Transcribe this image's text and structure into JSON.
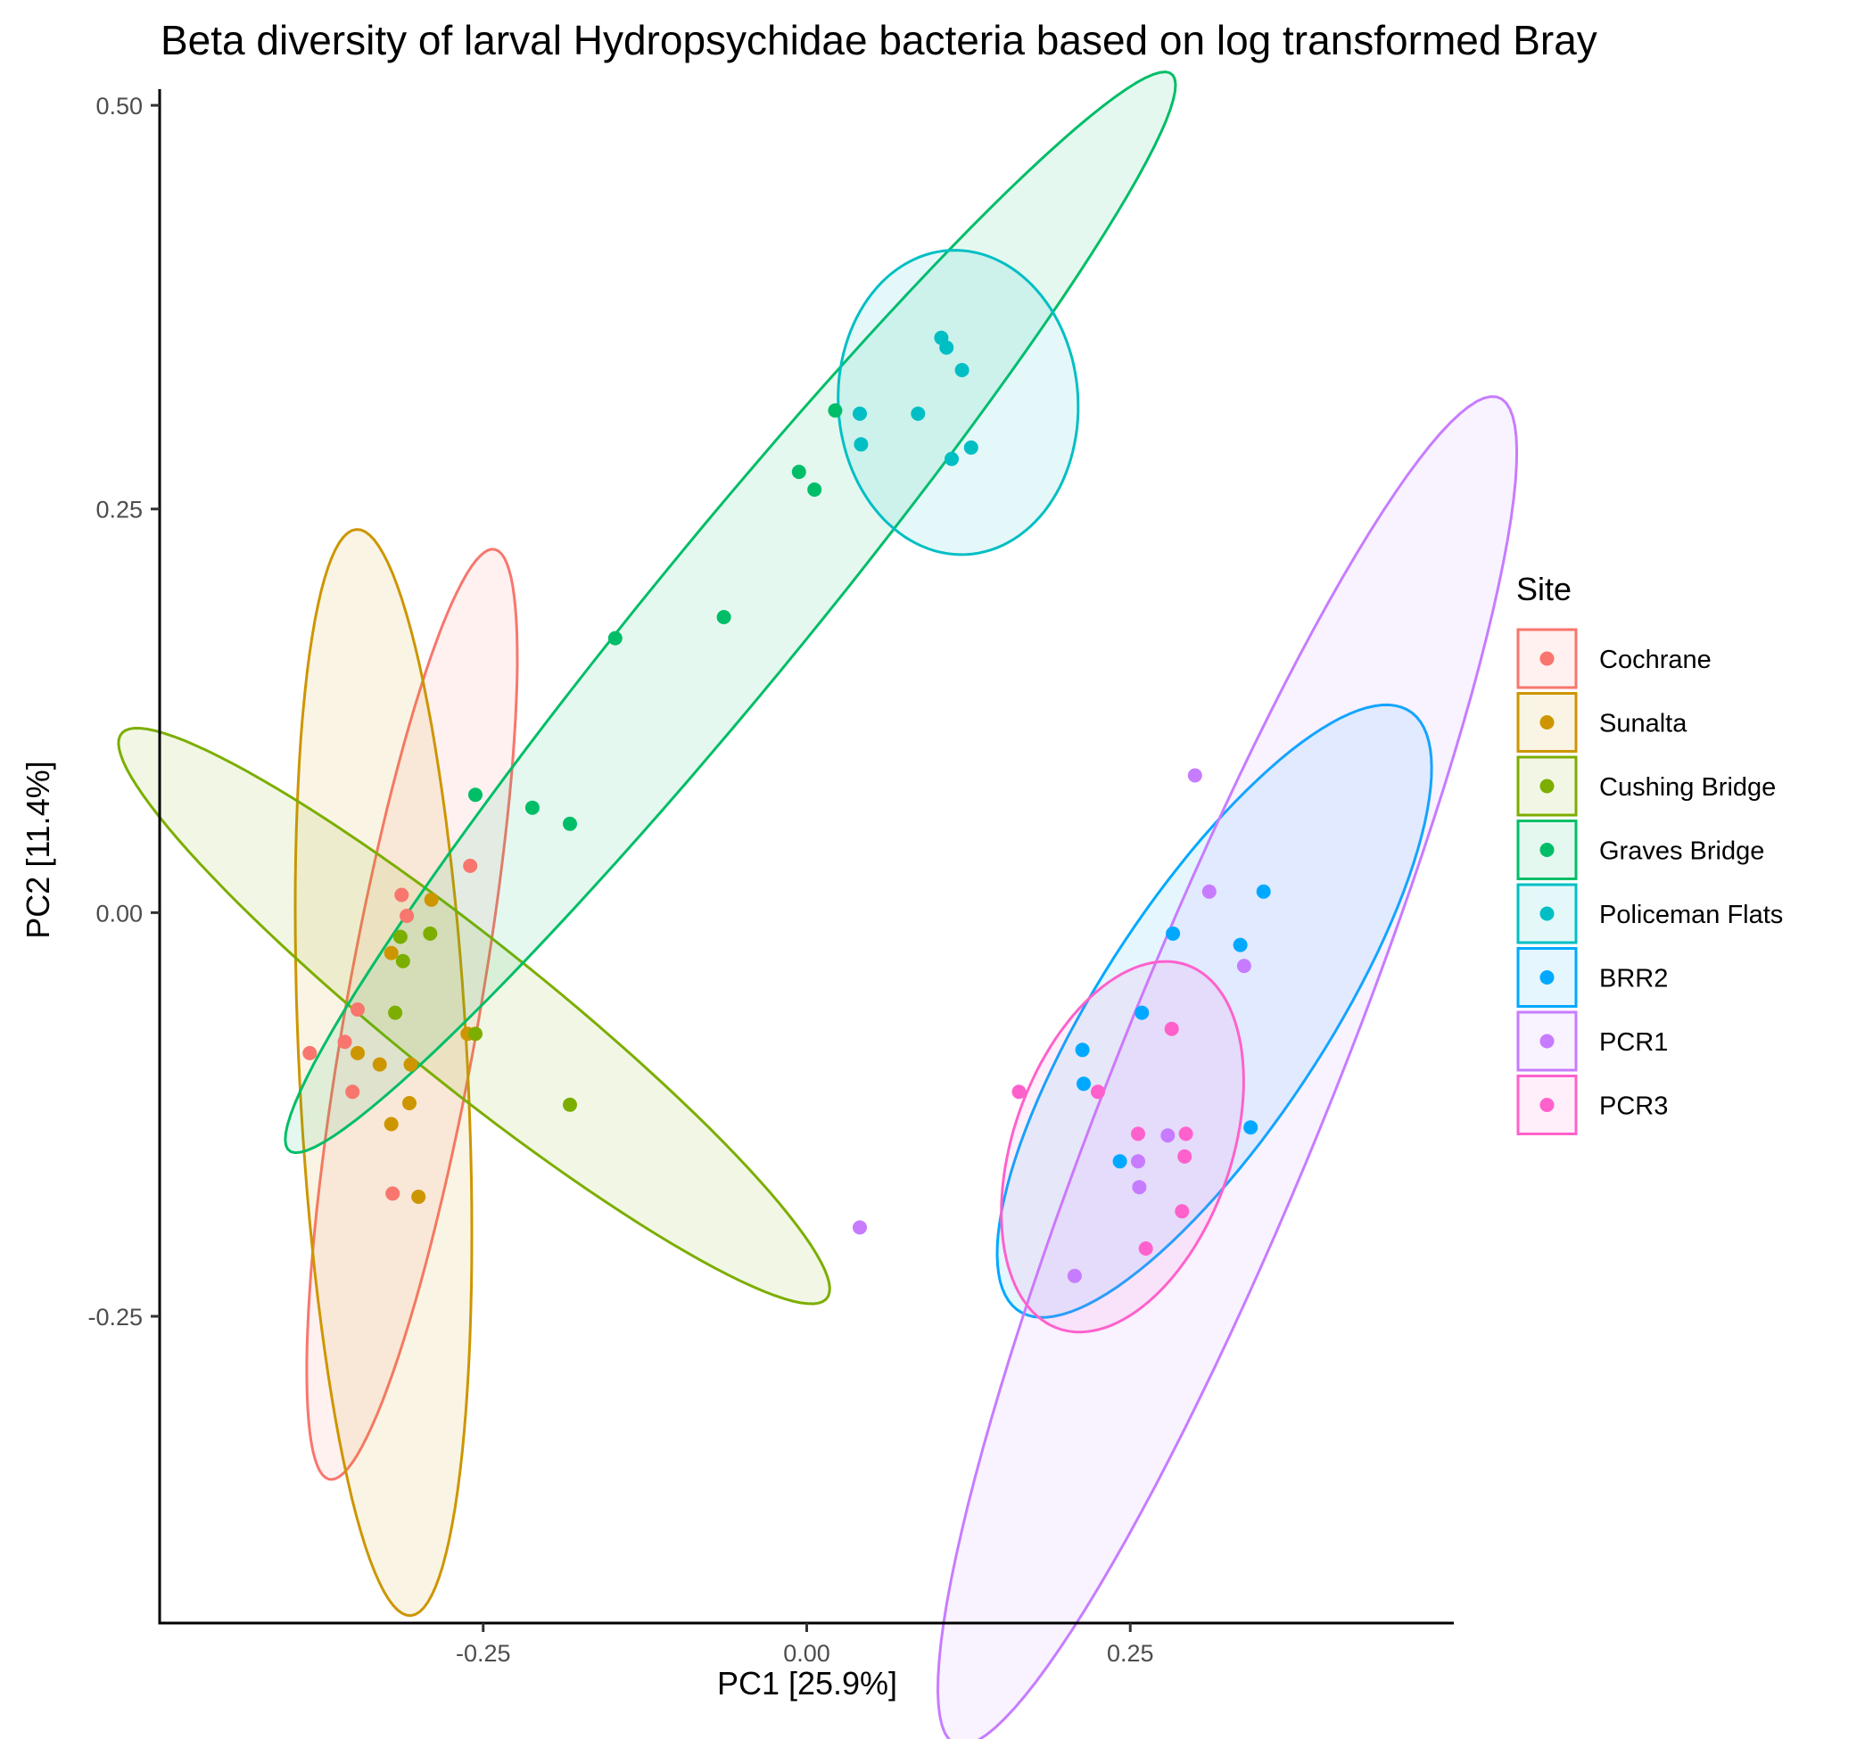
{
  "chart_data": {
    "type": "scatter",
    "title": "Beta diversity of larval Hydropsychidae bacteria based on log transformed Bray",
    "xlabel": "PC1 [25.9%]",
    "ylabel": "PC2 [11.4%]",
    "xlim": [
      -0.5,
      0.5
    ],
    "ylim": [
      -0.44,
      0.51
    ],
    "xticks": [
      -0.25,
      0.0,
      0.25
    ],
    "xtick_labels": [
      "-0.25",
      "0.00",
      "0.25"
    ],
    "yticks": [
      -0.25,
      0.0,
      0.25,
      0.5
    ],
    "ytick_labels": [
      "-0.25",
      "0.00",
      "0.25",
      "0.50"
    ],
    "grid": false,
    "legend": {
      "title": "Site",
      "position": "right"
    },
    "series": [
      {
        "name": "Cochrane",
        "color": "#F8766D",
        "points": [
          [
            -0.384,
            -0.087
          ],
          [
            -0.357,
            -0.08
          ],
          [
            -0.347,
            -0.06
          ],
          [
            -0.351,
            -0.111
          ],
          [
            -0.32,
            -0.174
          ],
          [
            -0.313,
            0.011
          ],
          [
            -0.309,
            -0.002
          ],
          [
            -0.26,
            0.029
          ]
        ],
        "ellipse": {
          "cx": -0.305,
          "cy": -0.063,
          "rx": 0.295,
          "ry": 0.051,
          "angle": 77.4
        }
      },
      {
        "name": "Sunalta",
        "color": "#CD9600",
        "points": [
          [
            -0.347,
            -0.087
          ],
          [
            -0.321,
            -0.025
          ],
          [
            -0.306,
            -0.094
          ],
          [
            -0.307,
            -0.118
          ],
          [
            -0.33,
            -0.094
          ],
          [
            -0.321,
            -0.131
          ],
          [
            -0.3,
            -0.176
          ],
          [
            -0.29,
            0.008
          ],
          [
            -0.262,
            -0.075
          ]
        ],
        "ellipse": {
          "cx": -0.327,
          "cy": -0.099,
          "rx": 0.337,
          "ry": 0.065,
          "angle": 93.6
        }
      },
      {
        "name": "Cushing Bridge",
        "color": "#7CAE00",
        "points": [
          [
            -0.314,
            -0.015
          ],
          [
            -0.312,
            -0.03
          ],
          [
            -0.318,
            -0.062
          ],
          [
            -0.291,
            -0.013
          ],
          [
            -0.256,
            -0.075
          ],
          [
            -0.183,
            -0.119
          ]
        ],
        "ellipse": {
          "cx": -0.257,
          "cy": -0.064,
          "rx": 0.324,
          "ry": 0.048,
          "angle": -32.4
        }
      },
      {
        "name": "Graves Bridge",
        "color": "#00BE67",
        "points": [
          [
            -0.256,
            0.073
          ],
          [
            -0.212,
            0.065
          ],
          [
            -0.183,
            0.055
          ],
          [
            -0.148,
            0.17
          ],
          [
            -0.064,
            0.183
          ],
          [
            -0.006,
            0.273
          ],
          [
            0.006,
            0.262
          ],
          [
            0.022,
            0.311
          ]
        ],
        "ellipse": {
          "cx": -0.059,
          "cy": 0.186,
          "rx": 0.477,
          "ry": 0.053,
          "angle": 44.2
        }
      },
      {
        "name": "Policeman Flats",
        "color": "#00BFC4",
        "points": [
          [
            0.041,
            0.309
          ],
          [
            0.042,
            0.29
          ],
          [
            0.086,
            0.309
          ],
          [
            0.104,
            0.356
          ],
          [
            0.108,
            0.35
          ],
          [
            0.12,
            0.336
          ],
          [
            0.112,
            0.281
          ],
          [
            0.127,
            0.288
          ]
        ],
        "ellipse": {
          "cx": 0.117,
          "cy": 0.316,
          "rx": 0.092,
          "ry": 0.095,
          "angle": 30.0
        }
      },
      {
        "name": "BRR2",
        "color": "#00A9FF",
        "points": [
          [
            0.213,
            -0.085
          ],
          [
            0.214,
            -0.106
          ],
          [
            0.259,
            -0.062
          ],
          [
            0.242,
            -0.154
          ],
          [
            0.283,
            -0.013
          ],
          [
            0.335,
            -0.02
          ],
          [
            0.353,
            0.013
          ],
          [
            0.343,
            -0.133
          ]
        ],
        "ellipse": {
          "cx": 0.315,
          "cy": -0.061,
          "rx": 0.24,
          "ry": 0.081,
          "angle": 49.4
        }
      },
      {
        "name": "PCR1",
        "color": "#C77CFF",
        "points": [
          [
            0.041,
            -0.195
          ],
          [
            0.3,
            0.085
          ],
          [
            0.311,
            0.013
          ],
          [
            0.338,
            -0.033
          ],
          [
            0.257,
            -0.17
          ],
          [
            0.256,
            -0.154
          ],
          [
            0.279,
            -0.138
          ],
          [
            0.207,
            -0.225
          ]
        ],
        "ellipse": {
          "cx": 0.325,
          "cy": -0.098,
          "rx": 0.467,
          "ry": 0.08,
          "angle": 63.0
        }
      },
      {
        "name": "PCR3",
        "color": "#FF61CC",
        "points": [
          [
            0.164,
            -0.111
          ],
          [
            0.225,
            -0.111
          ],
          [
            0.282,
            -0.072
          ],
          [
            0.256,
            -0.137
          ],
          [
            0.293,
            -0.137
          ],
          [
            0.292,
            -0.151
          ],
          [
            0.29,
            -0.185
          ],
          [
            0.262,
            -0.208
          ]
        ],
        "ellipse": {
          "cx": 0.244,
          "cy": -0.145,
          "rx": 0.124,
          "ry": 0.081,
          "angle": 60.0
        }
      }
    ]
  }
}
